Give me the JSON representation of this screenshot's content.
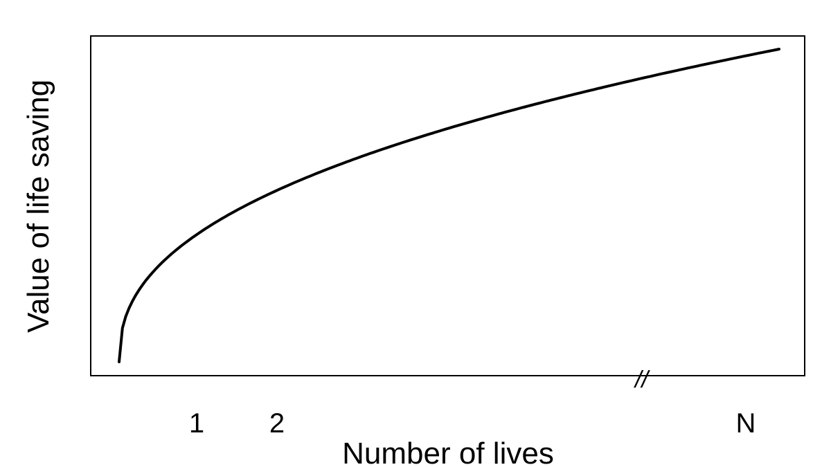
{
  "chart_data": {
    "type": "line",
    "title": "",
    "xlabel": "Number of lives",
    "ylabel": "Value of life saving",
    "x_ticks": [
      "1",
      "2",
      "N"
    ],
    "x_axis_break": "//",
    "grid": false,
    "legend": "none",
    "line_color": "#000000",
    "description_shape": "concave increasing"
  }
}
